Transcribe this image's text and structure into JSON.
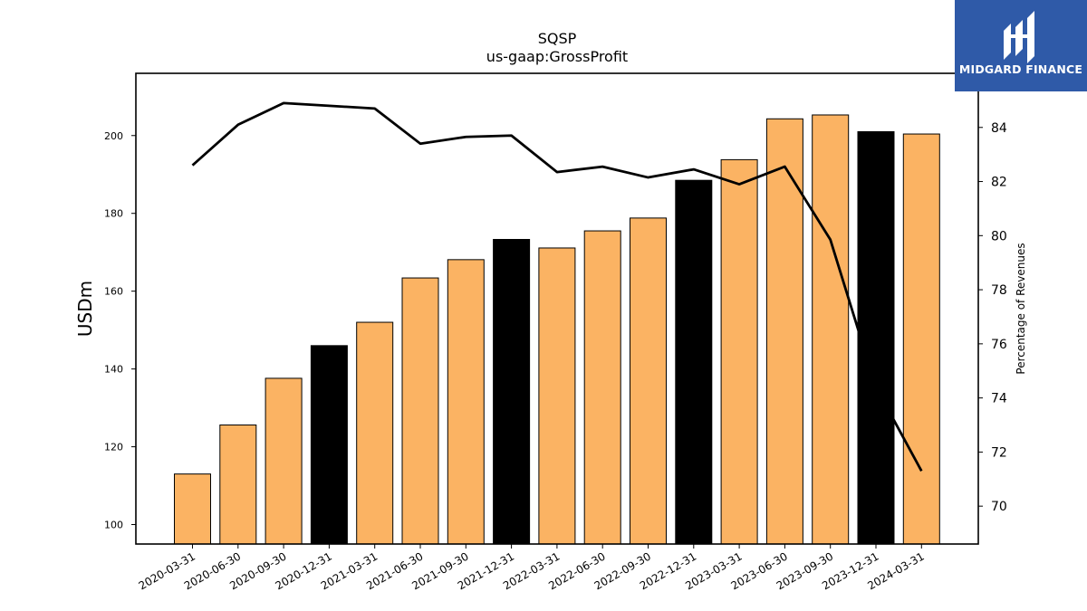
{
  "chart_data": {
    "type": "bar",
    "title": "SQSP",
    "subtitle": "us-gaap:GrossProfit",
    "ylabel": "USDm",
    "y2label": "Percentage of Revenues",
    "ylim": [
      95,
      216
    ],
    "y2lim": [
      68.6,
      86.0
    ],
    "yticks": [
      100,
      120,
      140,
      160,
      180,
      200
    ],
    "y2ticks": [
      70,
      72,
      74,
      76,
      78,
      80,
      82,
      84
    ],
    "categories": [
      "2020-03-31",
      "2020-06-30",
      "2020-09-30",
      "2020-12-31",
      "2021-03-31",
      "2021-06-30",
      "2021-09-30",
      "2021-12-31",
      "2022-03-31",
      "2022-06-30",
      "2022-09-30",
      "2022-12-31",
      "2023-03-31",
      "2023-06-30",
      "2023-09-30",
      "2023-12-31",
      "2024-03-31"
    ],
    "series": [
      {
        "type": "bar",
        "values": [
          113.0,
          125.6,
          137.6,
          146.0,
          152.0,
          163.4,
          168.1,
          173.3,
          171.1,
          175.5,
          178.8,
          188.5,
          193.8,
          204.3,
          205.3,
          201.0,
          200.4
        ],
        "colors": [
          "#fbb363",
          "#fbb363",
          "#fbb363",
          "#000000",
          "#fbb363",
          "#fbb363",
          "#fbb363",
          "#000000",
          "#fbb363",
          "#fbb363",
          "#fbb363",
          "#000000",
          "#fbb363",
          "#fbb363",
          "#fbb363",
          "#000000",
          "#fbb363"
        ]
      },
      {
        "type": "line",
        "axis": "right",
        "color": "#000000",
        "values": [
          82.6,
          84.1,
          84.9,
          84.8,
          84.7,
          83.4,
          83.65,
          83.7,
          82.35,
          82.55,
          82.15,
          82.45,
          81.9,
          82.55,
          79.85,
          74.4,
          71.3
        ]
      }
    ],
    "grid": false,
    "legend": "none"
  },
  "logo": {
    "text": "MIDGARD FINANCE",
    "background": "#2f5aa8"
  }
}
